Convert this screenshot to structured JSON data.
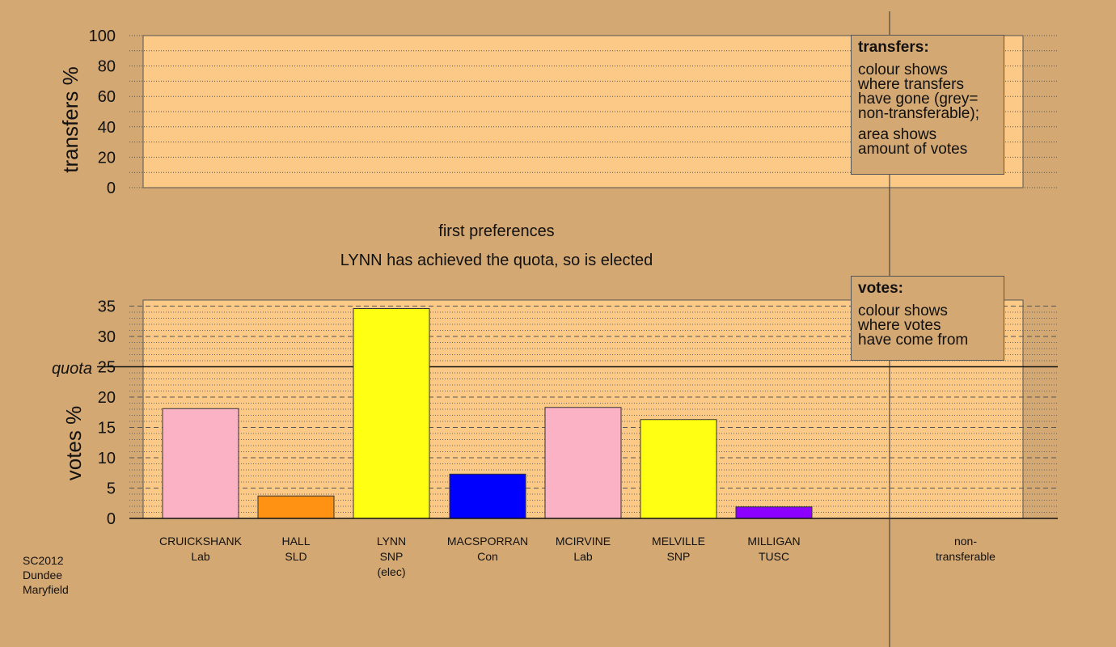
{
  "chart_data": [
    {
      "type": "bar",
      "name": "transfers",
      "ylabel": "transfers %",
      "ylim": [
        0,
        100
      ],
      "yticks": [
        0,
        20,
        40,
        60,
        80,
        100
      ],
      "values": []
    },
    {
      "type": "bar",
      "name": "votes",
      "title": "first preferences",
      "subtitle": "LYNN has achieved the quota, so is elected",
      "ylabel": "votes %",
      "ylim": [
        0,
        36
      ],
      "yticks": [
        0,
        5,
        10,
        15,
        20,
        25,
        30,
        35
      ],
      "quota": 25,
      "quota_label": "quota",
      "categories": [
        {
          "name": "CRUICKSHANK",
          "party": "Lab",
          "extra": "",
          "value": 18.1,
          "color": "#fbb2c4"
        },
        {
          "name": "HALL",
          "party": "SLD",
          "extra": "",
          "value": 3.7,
          "color": "#ff9212"
        },
        {
          "name": "LYNN",
          "party": "SNP",
          "extra": "(elec)",
          "value": 34.6,
          "color": "#ffff14"
        },
        {
          "name": "MACSPORRAN",
          "party": "Con",
          "extra": "",
          "value": 7.3,
          "color": "#0000ff"
        },
        {
          "name": "MCIRVINE",
          "party": "Lab",
          "extra": "",
          "value": 18.3,
          "color": "#fbb2c4"
        },
        {
          "name": "MELVILLE",
          "party": "SNP",
          "extra": "",
          "value": 16.3,
          "color": "#ffff14"
        },
        {
          "name": "MILLIGAN",
          "party": "TUSC",
          "extra": "",
          "value": 1.9,
          "color": "#8b00ff"
        }
      ],
      "nontransferable": {
        "line1": "non-",
        "line2": "transferable",
        "value": 0
      }
    }
  ],
  "legends": {
    "transfers": {
      "title": "transfers:",
      "lines1": [
        "colour shows",
        "where transfers",
        "have gone (grey=",
        "non-transferable);"
      ],
      "lines2": [
        "area shows",
        "amount of votes"
      ]
    },
    "votes": {
      "title": "votes:",
      "lines1": [
        "colour shows",
        "where votes",
        "have come from"
      ]
    }
  },
  "election": {
    "line1": "SC2012",
    "line2": "Dundee",
    "line3": "Maryfield"
  },
  "colors": {
    "background": "#d4a872",
    "panel": "#fcc987",
    "axis": "#111111"
  }
}
